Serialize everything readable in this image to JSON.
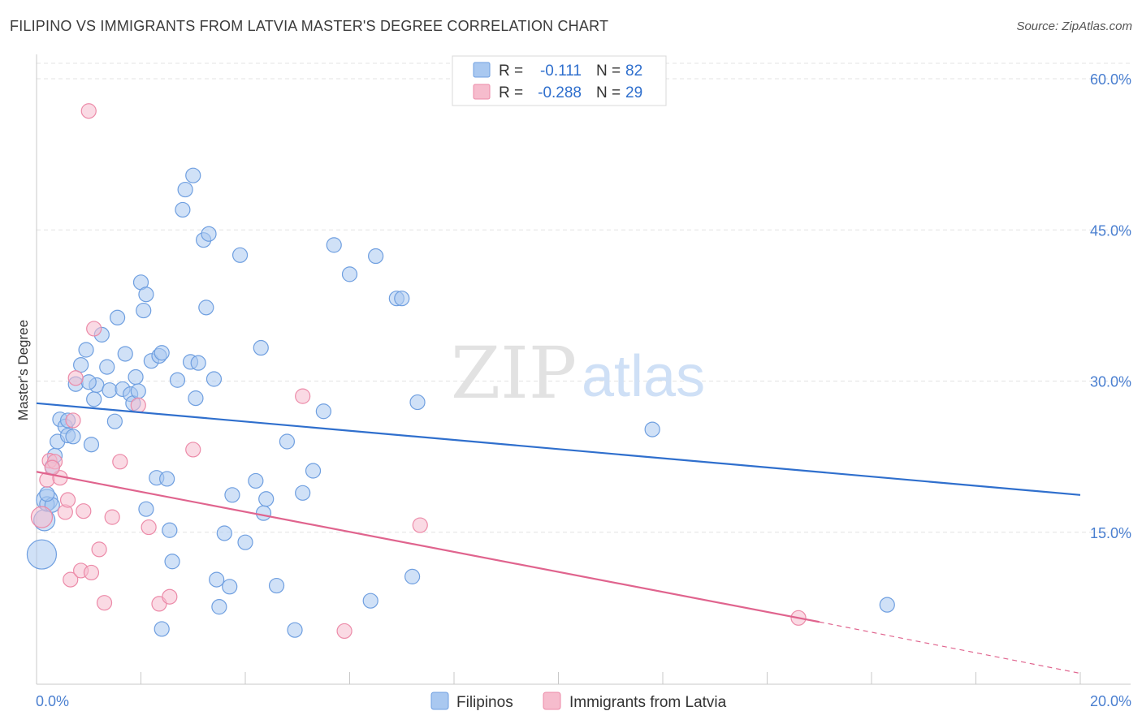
{
  "title": "FILIPINO VS IMMIGRANTS FROM LATVIA MASTER'S DEGREE CORRELATION CHART",
  "source": "Source: ZipAtlas.com",
  "watermark": {
    "zip": "ZIP",
    "atlas": "atlas"
  },
  "legend": {
    "rows": [
      {
        "r_label": "R =",
        "r_value": "-0.111",
        "n_label": "N =",
        "n_value": "82",
        "color": "#a9c8f0",
        "stroke": "#6f9fe0"
      },
      {
        "r_label": "R =",
        "r_value": "-0.288",
        "n_label": "N =",
        "n_value": "29",
        "color": "#f6bccd",
        "stroke": "#ec8aa8"
      }
    ]
  },
  "bottom_legend": [
    {
      "label": "Filipinos",
      "color": "#a9c8f0",
      "stroke": "#6f9fe0"
    },
    {
      "label": "Immigrants from Latvia",
      "color": "#f6bccd",
      "stroke": "#ec8aa8"
    }
  ],
  "chart_data": {
    "type": "scatter",
    "title": "FILIPINO VS IMMIGRANTS FROM LATVIA MASTER'S DEGREE CORRELATION CHART",
    "xlabel": "",
    "ylabel": "Master's Degree",
    "xlim": [
      0,
      20
    ],
    "ylim": [
      0,
      60
    ],
    "x_tick_labels": [
      "0.0%",
      "20.0%"
    ],
    "y_tick_labels": [
      "15.0%",
      "30.0%",
      "45.0%",
      "60.0%"
    ],
    "y_ticks": [
      15,
      30,
      45,
      60
    ],
    "grid": true,
    "series": [
      {
        "name": "Filipinos",
        "color": "#a9c8f0",
        "stroke": "#6f9fe0",
        "trend": {
          "x": [
            0,
            20
          ],
          "y": [
            27.8,
            18.7
          ],
          "color": "#2f6fcd"
        },
        "points": [
          [
            0.1,
            12.8,
            3
          ],
          [
            0.15,
            16.2,
            2
          ],
          [
            0.2,
            18.2,
            2
          ],
          [
            0.2,
            17.8,
            1
          ],
          [
            0.3,
            21.5,
            1
          ],
          [
            0.35,
            22.6,
            1
          ],
          [
            0.4,
            24.0,
            1
          ],
          [
            0.45,
            26.2,
            1
          ],
          [
            0.55,
            25.5,
            1
          ],
          [
            0.6,
            24.6,
            1
          ],
          [
            0.7,
            24.5,
            1
          ],
          [
            0.75,
            29.7,
            1
          ],
          [
            0.85,
            31.6,
            1
          ],
          [
            0.95,
            33.1,
            1
          ],
          [
            1.05,
            23.7,
            1
          ],
          [
            1.1,
            28.2,
            1
          ],
          [
            1.15,
            29.6,
            1
          ],
          [
            1.25,
            34.6,
            1
          ],
          [
            1.35,
            31.4,
            1
          ],
          [
            1.4,
            29.1,
            1
          ],
          [
            1.5,
            26.0,
            1
          ],
          [
            1.55,
            36.3,
            1
          ],
          [
            1.65,
            29.2,
            1
          ],
          [
            1.7,
            32.7,
            1
          ],
          [
            1.8,
            28.7,
            1
          ],
          [
            1.85,
            27.8,
            1
          ],
          [
            1.9,
            30.4,
            1
          ],
          [
            1.95,
            29.0,
            1
          ],
          [
            2.0,
            39.8,
            1
          ],
          [
            2.05,
            37.0,
            1
          ],
          [
            2.1,
            38.6,
            1
          ],
          [
            2.1,
            17.3,
            1
          ],
          [
            2.2,
            32.0,
            1
          ],
          [
            2.3,
            20.4,
            1
          ],
          [
            2.35,
            32.5,
            1
          ],
          [
            2.4,
            32.8,
            1
          ],
          [
            2.5,
            20.3,
            1
          ],
          [
            2.55,
            15.2,
            1
          ],
          [
            2.6,
            12.1,
            1
          ],
          [
            2.7,
            30.1,
            1
          ],
          [
            2.8,
            47.0,
            1
          ],
          [
            2.85,
            49.0,
            1
          ],
          [
            2.95,
            31.9,
            1
          ],
          [
            3.0,
            50.4,
            1
          ],
          [
            3.05,
            28.3,
            1
          ],
          [
            3.1,
            31.8,
            1
          ],
          [
            3.2,
            44.0,
            1
          ],
          [
            3.25,
            37.3,
            1
          ],
          [
            3.3,
            44.6,
            1
          ],
          [
            3.4,
            30.2,
            1
          ],
          [
            3.45,
            10.3,
            1
          ],
          [
            3.5,
            7.6,
            1
          ],
          [
            3.6,
            14.9,
            1
          ],
          [
            3.7,
            9.6,
            1
          ],
          [
            3.75,
            18.7,
            1
          ],
          [
            3.9,
            42.5,
            1
          ],
          [
            4.0,
            14.0,
            1
          ],
          [
            4.2,
            20.1,
            1
          ],
          [
            4.3,
            33.3,
            1
          ],
          [
            4.35,
            16.9,
            1
          ],
          [
            4.4,
            18.3,
            1
          ],
          [
            4.6,
            9.7,
            1
          ],
          [
            4.8,
            24.0,
            1
          ],
          [
            4.95,
            5.3,
            1
          ],
          [
            5.1,
            18.9,
            1
          ],
          [
            5.3,
            21.1,
            1
          ],
          [
            5.5,
            27.0,
            1
          ],
          [
            5.7,
            43.5,
            1
          ],
          [
            6.0,
            40.6,
            1
          ],
          [
            6.4,
            8.2,
            1
          ],
          [
            6.5,
            42.4,
            1
          ],
          [
            6.9,
            38.2,
            1
          ],
          [
            7.0,
            38.2,
            1
          ],
          [
            7.2,
            10.6,
            1
          ],
          [
            7.3,
            27.9,
            1
          ],
          [
            11.8,
            25.2,
            1
          ],
          [
            16.3,
            7.8,
            1
          ],
          [
            2.4,
            5.4,
            1
          ],
          [
            0.3,
            17.7,
            1
          ],
          [
            0.2,
            18.8,
            1
          ],
          [
            0.6,
            26.1,
            1
          ],
          [
            1.0,
            29.9,
            1
          ]
        ]
      },
      {
        "name": "Immigrants from Latvia",
        "color": "#f6bccd",
        "stroke": "#ec8aa8",
        "trend": {
          "x": [
            0,
            15.0
          ],
          "y": [
            21.0,
            6.1
          ],
          "color": "#e0648e",
          "dashed_to": [
            20,
            1.0
          ]
        },
        "points": [
          [
            0.1,
            16.5,
            2
          ],
          [
            0.2,
            20.2,
            1
          ],
          [
            0.25,
            22.1,
            1
          ],
          [
            0.35,
            22.0,
            1
          ],
          [
            0.45,
            20.4,
            1
          ],
          [
            0.55,
            17.0,
            1
          ],
          [
            0.6,
            18.2,
            1
          ],
          [
            0.7,
            26.1,
            1
          ],
          [
            0.65,
            10.3,
            1
          ],
          [
            0.75,
            30.3,
            1
          ],
          [
            0.85,
            11.2,
            1
          ],
          [
            0.9,
            17.1,
            1
          ],
          [
            1.05,
            11.0,
            1
          ],
          [
            1.1,
            35.2,
            1
          ],
          [
            1.2,
            13.3,
            1
          ],
          [
            1.3,
            8.0,
            1
          ],
          [
            1.45,
            16.5,
            1
          ],
          [
            1.6,
            22.0,
            1
          ],
          [
            1.95,
            27.6,
            1
          ],
          [
            2.15,
            15.5,
            1
          ],
          [
            2.35,
            7.9,
            1
          ],
          [
            2.55,
            8.6,
            1
          ],
          [
            3.0,
            23.2,
            1
          ],
          [
            5.1,
            28.5,
            1
          ],
          [
            5.9,
            5.2,
            1
          ],
          [
            7.35,
            15.7,
            1
          ],
          [
            14.6,
            6.5,
            1
          ],
          [
            1.0,
            56.8,
            1
          ],
          [
            0.3,
            21.4,
            1
          ]
        ]
      }
    ]
  }
}
